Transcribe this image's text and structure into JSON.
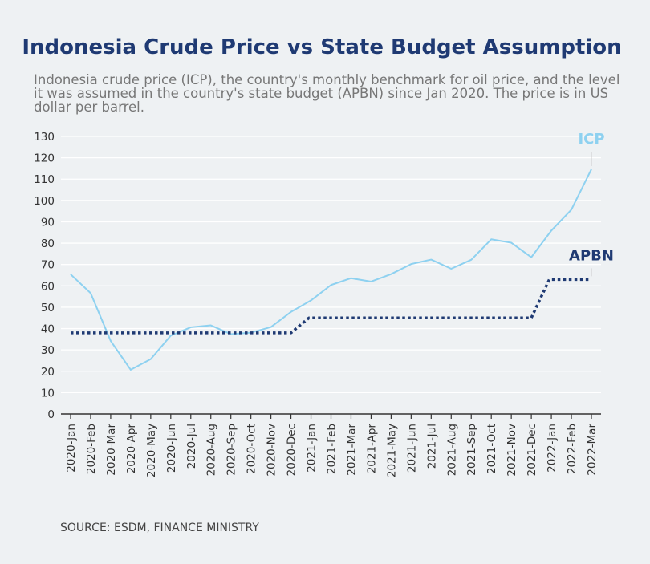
{
  "title": "Indonesia Crude Price vs State Budget Assumption",
  "subtitle": "Indonesia crude price (ICP), the country's monthly benchmark for oil price, and the level it was assumed in the country's state budget (APBN) since Jan 2020. The price is in US dollar per barrel.",
  "source": "SOURCE: ESDM, FINANCE MINISTRY",
  "chart_data": {
    "type": "line",
    "x": [
      "2020-Jan",
      "2020-Feb",
      "2020-Mar",
      "2020-Apr",
      "2020-May",
      "2020-Jun",
      "2020-Jul",
      "2020-Aug",
      "2020-Sep",
      "2020-Oct",
      "2020-Nov",
      "2020-Dec",
      "2021-Jan",
      "2021-Feb",
      "2021-Mar",
      "2021-Apr",
      "2021-May",
      "2021-Jun",
      "2021-Jul",
      "2021-Aug",
      "2021-Sep",
      "2021-Oct",
      "2021-Nov",
      "2021-Dec",
      "2022-Jan",
      "2022-Feb",
      "2022-Mar"
    ],
    "series": [
      {
        "name": "ICP",
        "color": "#8ed1f0",
        "style": "solid",
        "values": [
          65.4,
          56.6,
          34.2,
          20.7,
          25.7,
          36.7,
          40.6,
          41.5,
          37.4,
          38.1,
          40.7,
          47.8,
          53.2,
          60.4,
          63.6,
          62.0,
          65.5,
          70.2,
          72.3,
          68.0,
          72.2,
          81.8,
          80.2,
          73.4,
          85.9,
          95.7,
          114.6
        ]
      },
      {
        "name": "APBN",
        "color": "#1f3a73",
        "style": "dotted",
        "values": [
          38,
          38,
          38,
          38,
          38,
          38,
          38,
          38,
          38,
          38,
          38,
          38,
          45,
          45,
          45,
          45,
          45,
          45,
          45,
          45,
          45,
          45,
          45,
          45,
          63,
          63,
          63
        ]
      }
    ],
    "y_ticks": [
      0,
      10,
      20,
      30,
      40,
      50,
      60,
      70,
      80,
      90,
      100,
      110,
      120,
      130
    ],
    "ylim": [
      0,
      130
    ],
    "grid": true,
    "legend": "direct labels at line ends"
  }
}
